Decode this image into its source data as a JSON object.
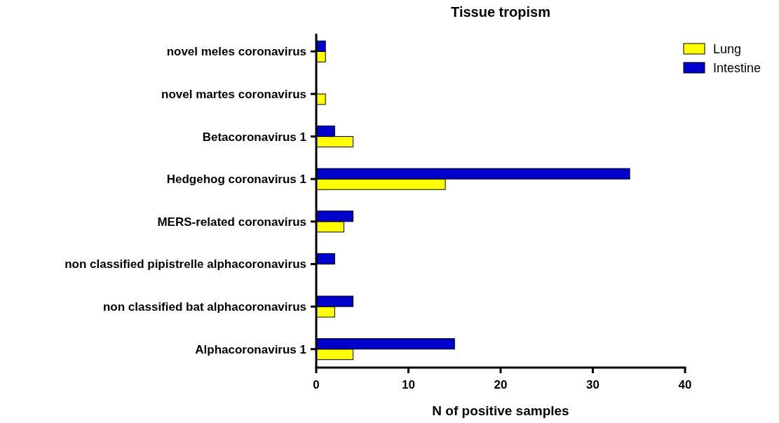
{
  "chart_data": {
    "type": "bar",
    "orientation": "horizontal",
    "title": "Tissue tropism",
    "xlabel": "N of positive samples",
    "categories": [
      "novel meles coronavirus",
      "novel martes coronavirus",
      "Betacoronavirus 1",
      "Hedgehog coronavirus 1",
      "MERS-related coronavirus",
      "non classified pipistrelle alphacoronavirus",
      "non classified bat alphacoronavirus",
      "Alphacoronavirus 1"
    ],
    "series": [
      {
        "name": "Lung",
        "color": "#ffff00",
        "values": [
          1,
          1,
          4,
          14,
          3,
          0,
          2,
          4
        ]
      },
      {
        "name": "Intestine",
        "color": "#0000cc",
        "values": [
          1,
          0,
          2,
          34,
          4,
          2,
          4,
          15
        ]
      }
    ],
    "xlim": [
      0,
      40
    ],
    "xticks": [
      0,
      10,
      20,
      30,
      40
    ],
    "legend": "top right",
    "grid": false
  }
}
